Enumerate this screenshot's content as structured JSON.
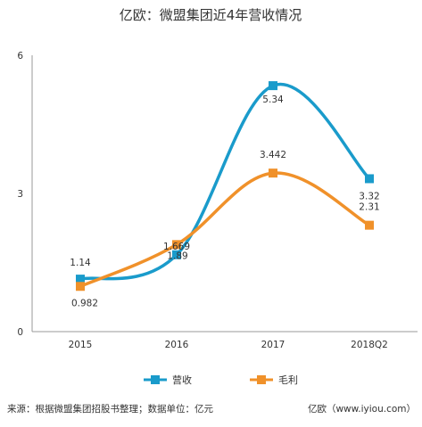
{
  "chart_data": {
    "type": "line",
    "title": "亿欧：微盟集团近4年营收情况",
    "xlabel": "",
    "ylabel": "",
    "categories": [
      "2015",
      "2016",
      "2017",
      "2018Q2"
    ],
    "ylim": [
      0,
      6
    ],
    "yticks": [
      "0",
      "3",
      "6"
    ],
    "grid": false,
    "legend_position": "bottom",
    "smooth": true,
    "series": [
      {
        "name": "营收",
        "color": "#1a9bcb",
        "marker": "square",
        "values": [
          1.14,
          1.669,
          5.34,
          3.32
        ],
        "labels": [
          "1.14",
          "1.669",
          "5.34",
          "3.32"
        ]
      },
      {
        "name": "毛利",
        "color": "#f0912a",
        "marker": "square",
        "values": [
          0.982,
          1.89,
          3.442,
          2.31
        ],
        "labels": [
          "0.982",
          "1.89",
          "3.442",
          "2.31"
        ]
      }
    ]
  },
  "footer": {
    "source": "来源：根据微盟集团招股书整理；数据单位：亿元",
    "brand": "亿欧（www.iyiou.com）"
  }
}
